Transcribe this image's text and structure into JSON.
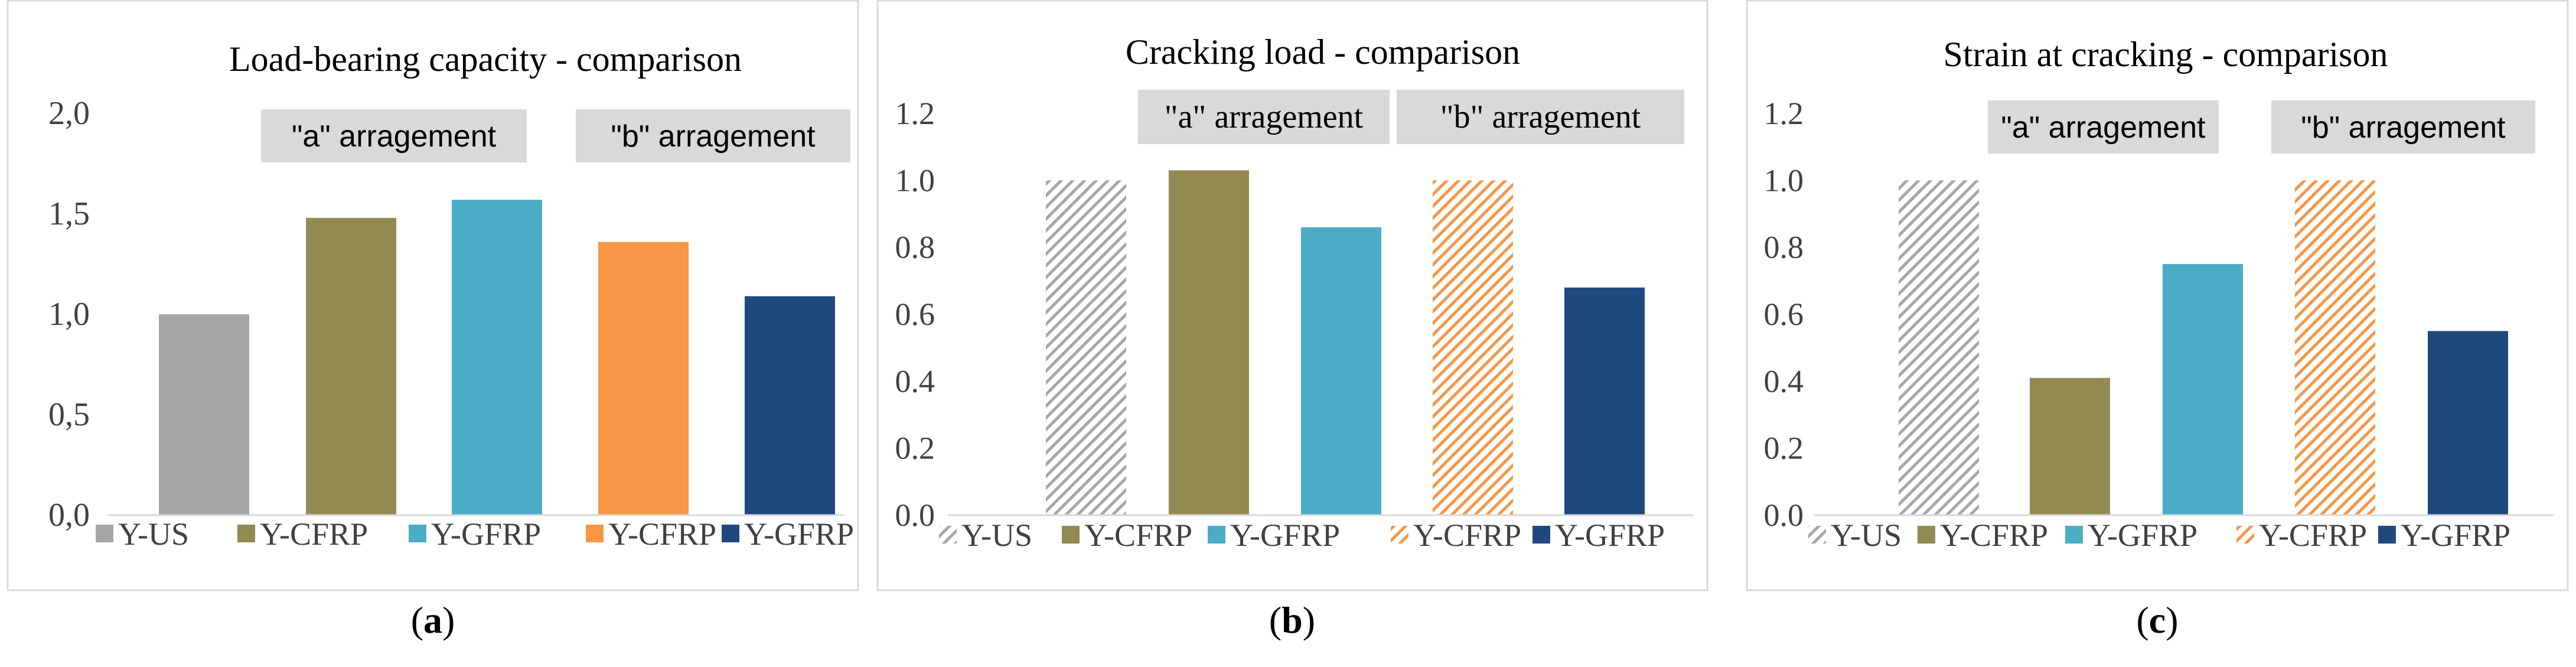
{
  "chart_data": [
    {
      "type": "bar",
      "title": "Load-bearing  capacity  - comparison",
      "categories": [
        "Y-US",
        "Y-CFRP",
        "Y-GFRP",
        "Y-CFRP",
        "Y-GFRP"
      ],
      "values": [
        1.0,
        1.48,
        1.57,
        1.36,
        1.09
      ],
      "colors": [
        "#a6a6a6",
        "#938953",
        "#4bacc6",
        "#f79646",
        "#1f497d"
      ],
      "patterns": [
        "solid",
        "solid",
        "solid",
        "solid",
        "solid"
      ],
      "ylim": [
        0,
        2.0
      ],
      "yticks": [
        "0,0",
        "0,5",
        "1,0",
        "1,5",
        "2,0"
      ],
      "group_labels": [
        "\"a\" arragement",
        "\"b\" arragement"
      ],
      "legend": [
        "Y-US",
        "Y-CFRP",
        "Y-GFRP",
        "Y-CFRP",
        "Y-GFRP"
      ],
      "legend_position": "bottom",
      "xlabel": "",
      "ylabel": "",
      "grid": false,
      "caption": "a"
    },
    {
      "type": "bar",
      "title": "Cracking load - comparison",
      "categories": [
        "Y-US",
        "Y-CFRP",
        "Y-GFRP",
        "Y-CFRP",
        "Y-GFRP"
      ],
      "values": [
        1.0,
        1.03,
        0.86,
        1.0,
        0.68
      ],
      "colors": [
        "#a6a6a6",
        "#938953",
        "#4bacc6",
        "#f79646",
        "#1f497d"
      ],
      "patterns": [
        "hatch",
        "solid",
        "solid",
        "hatch",
        "solid"
      ],
      "ylim": [
        0,
        1.2
      ],
      "yticks": [
        "0.0",
        "0.2",
        "0.4",
        "0.6",
        "0.8",
        "1.0",
        "1.2"
      ],
      "group_labels": [
        "\"a\" arragement",
        "\"b\" arragement"
      ],
      "legend": [
        "Y-US",
        "Y-CFRP",
        "Y-GFRP",
        "Y-CFRP",
        "Y-GFRP"
      ],
      "legend_position": "bottom",
      "xlabel": "",
      "ylabel": "",
      "grid": false,
      "caption": "b"
    },
    {
      "type": "bar",
      "title": "Strain at cracking - comparison",
      "categories": [
        "Y-US",
        "Y-CFRP",
        "Y-GFRP",
        "Y-CFRP",
        "Y-GFRP"
      ],
      "values": [
        1.0,
        0.41,
        0.75,
        1.0,
        0.55
      ],
      "colors": [
        "#a6a6a6",
        "#938953",
        "#4bacc6",
        "#f79646",
        "#1f497d"
      ],
      "patterns": [
        "hatch",
        "solid",
        "solid",
        "hatch",
        "solid"
      ],
      "ylim": [
        0,
        1.2
      ],
      "yticks": [
        "0.0",
        "0.2",
        "0.4",
        "0.6",
        "0.8",
        "1.0",
        "1.2"
      ],
      "group_labels": [
        "\"a\" arragement",
        "\"b\" arragement"
      ],
      "legend": [
        "Y-US",
        "Y-CFRP",
        "Y-GFRP",
        "Y-CFRP",
        "Y-GFRP"
      ],
      "legend_position": "bottom",
      "xlabel": "",
      "ylabel": "",
      "grid": false,
      "caption": "c"
    }
  ]
}
